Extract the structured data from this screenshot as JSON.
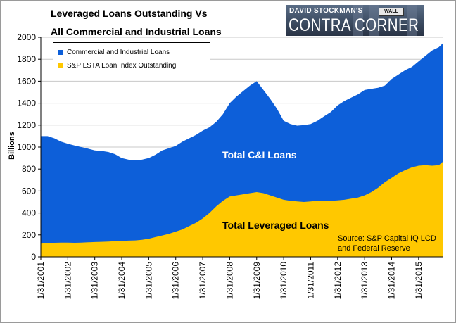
{
  "header": {
    "title_line1": "Leveraged Loans Outstanding Vs",
    "title_line2": "All Commercial and Industrial Loans"
  },
  "logo": {
    "line1": "DAVID STOCKMAN'S",
    "line2": "CONTRA CORNER",
    "sign": "WALL"
  },
  "colors": {
    "ci": "#0D5FD9",
    "lev": "#FFC800",
    "grid": "#C8C8C8",
    "axis": "#000000"
  },
  "chart_data": {
    "type": "area",
    "ylabel": "Billions",
    "xlabel": "",
    "ylim": [
      0,
      2000
    ],
    "ytick_step": 200,
    "grid": "horizontal",
    "legend_placement": "top-left",
    "x_tick_labels": [
      "1/31/2001",
      "1/31/2002",
      "1/31/2003",
      "1/31/2004",
      "1/31/2005",
      "1/31/2006",
      "1/31/2007",
      "1/31/2008",
      "1/31/2009",
      "1/31/2010",
      "1/31/2011",
      "1/31/2012",
      "1/31/2013",
      "1/31/2014",
      "1/31/2015"
    ],
    "x": [
      "2001-01",
      "2001-04",
      "2001-07",
      "2001-10",
      "2002-01",
      "2002-04",
      "2002-07",
      "2002-10",
      "2003-01",
      "2003-04",
      "2003-07",
      "2003-10",
      "2004-01",
      "2004-04",
      "2004-07",
      "2004-10",
      "2005-01",
      "2005-04",
      "2005-07",
      "2005-10",
      "2006-01",
      "2006-04",
      "2006-07",
      "2006-10",
      "2007-01",
      "2007-04",
      "2007-07",
      "2007-10",
      "2008-01",
      "2008-04",
      "2008-07",
      "2008-10",
      "2009-01",
      "2009-04",
      "2009-07",
      "2009-10",
      "2010-01",
      "2010-04",
      "2010-07",
      "2010-10",
      "2011-01",
      "2011-04",
      "2011-07",
      "2011-10",
      "2012-01",
      "2012-04",
      "2012-07",
      "2012-10",
      "2013-01",
      "2013-04",
      "2013-07",
      "2013-10",
      "2014-01",
      "2014-04",
      "2014-07",
      "2014-10",
      "2015-01",
      "2015-04",
      "2015-07",
      "2015-10",
      "2015-12"
    ],
    "series": [
      {
        "name": "Commercial and Industrial Loans",
        "values": [
          1100,
          1100,
          1080,
          1050,
          1030,
          1015,
          1000,
          985,
          970,
          965,
          955,
          935,
          900,
          885,
          880,
          885,
          900,
          930,
          970,
          990,
          1010,
          1050,
          1080,
          1110,
          1150,
          1180,
          1230,
          1300,
          1400,
          1460,
          1510,
          1560,
          1600,
          1520,
          1440,
          1350,
          1240,
          1210,
          1195,
          1200,
          1210,
          1240,
          1280,
          1320,
          1380,
          1420,
          1450,
          1480,
          1520,
          1530,
          1540,
          1560,
          1620,
          1660,
          1700,
          1730,
          1780,
          1830,
          1880,
          1910,
          1950
        ]
      },
      {
        "name": "S&P LSTA Loan Index Outstanding",
        "values": [
          120,
          125,
          128,
          130,
          130,
          128,
          130,
          133,
          135,
          137,
          140,
          142,
          145,
          148,
          150,
          155,
          165,
          180,
          195,
          210,
          230,
          250,
          280,
          310,
          350,
          400,
          460,
          510,
          550,
          560,
          570,
          580,
          590,
          580,
          560,
          540,
          520,
          510,
          505,
          500,
          505,
          510,
          510,
          510,
          515,
          520,
          530,
          540,
          560,
          590,
          630,
          680,
          720,
          760,
          790,
          815,
          830,
          835,
          830,
          835,
          870
        ]
      }
    ],
    "annotations": [
      "Total C&I Loans",
      "Total Leveraged Loans"
    ],
    "source": [
      "Source: S&P Capital IQ LCD",
      "and Federal Reserve"
    ]
  }
}
